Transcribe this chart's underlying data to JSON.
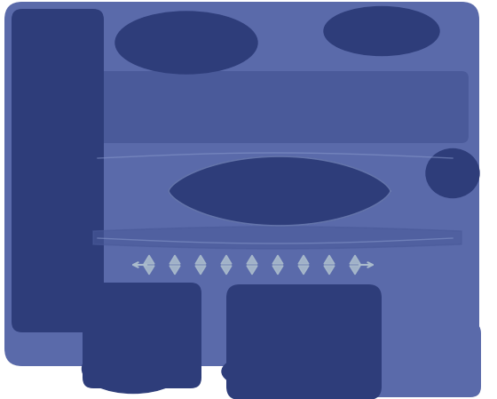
{
  "bg_color": "#ffffff",
  "light_blue": "#5a6aaa",
  "mid_blue": "#4a5a9a",
  "dark_blue": "#3a4888",
  "darker_blue": "#2e3d7a",
  "lens_border": "#8899cc",
  "dipole_color": "#aabbcc",
  "fig_width": 5.6,
  "fig_height": 4.49,
  "dpi": 100
}
